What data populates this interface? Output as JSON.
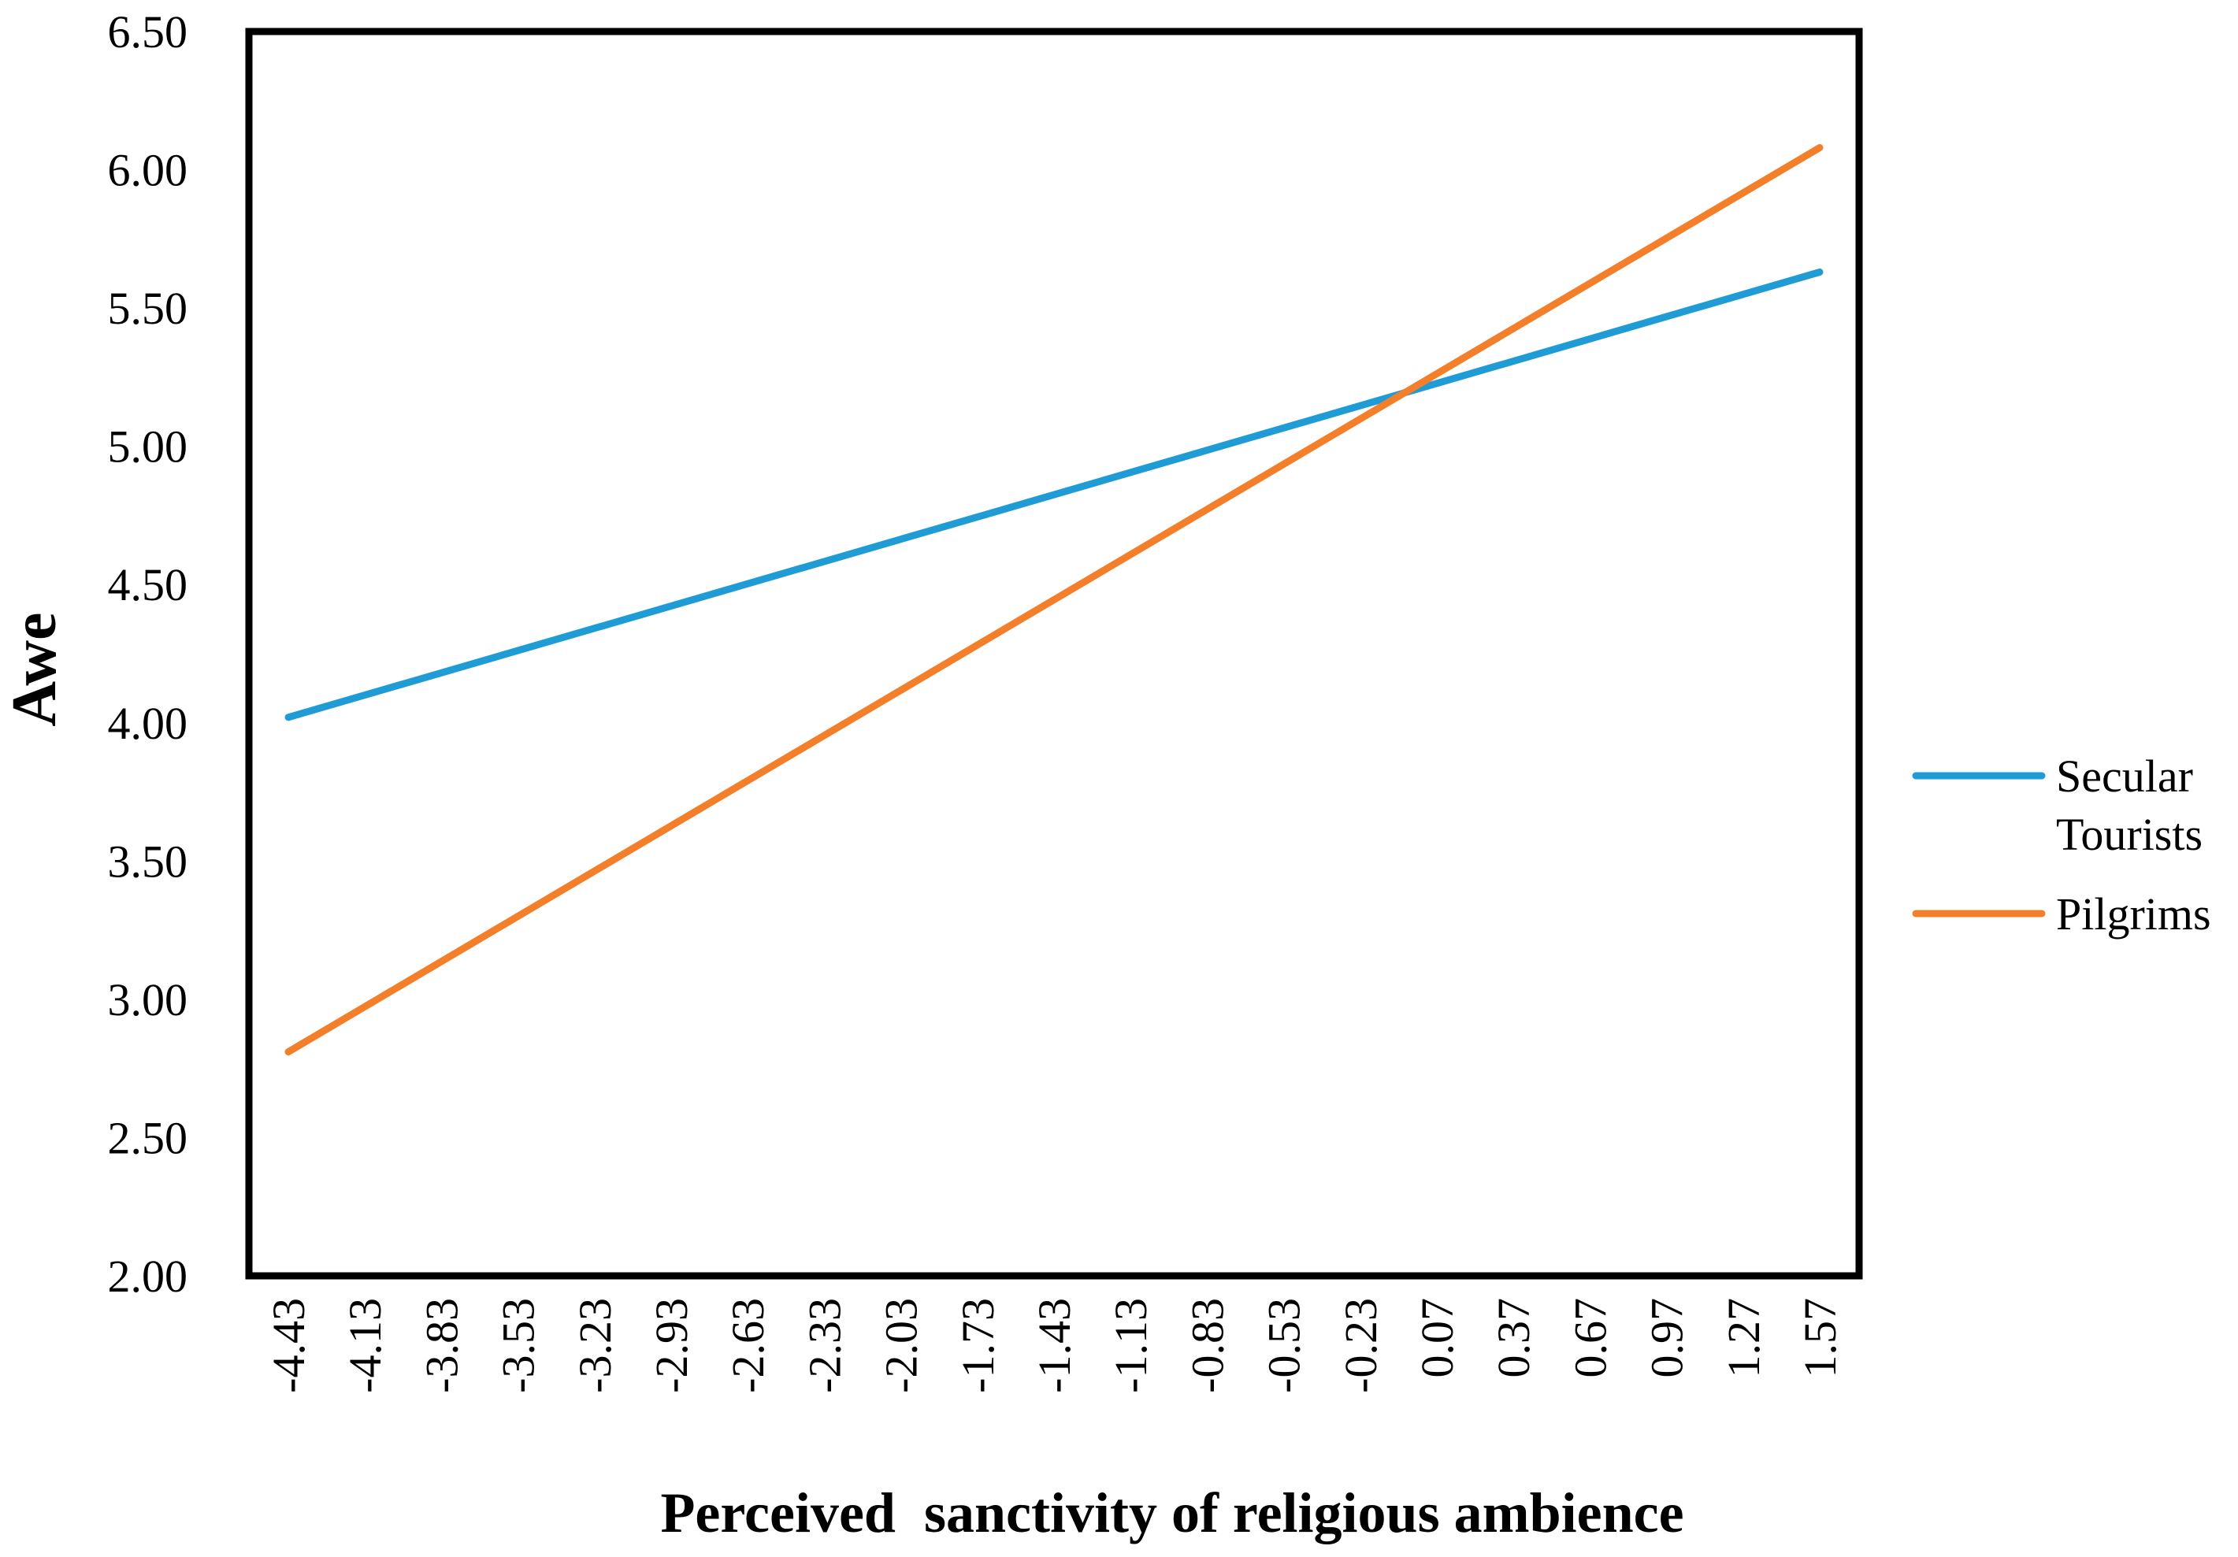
{
  "chart_data": {
    "type": "line",
    "title": "",
    "xlabel": "Perceived  sanctivity of religious ambience",
    "ylabel": "Awe",
    "categories": [
      "-4.43",
      "-4.13",
      "-3.83",
      "-3.53",
      "-3.23",
      "-2.93",
      "-2.63",
      "-2.33",
      "-2.03",
      "-1.73",
      "-1.43",
      "-1.13",
      "-0.83",
      "-0.53",
      "-0.23",
      "0.07",
      "0.37",
      "0.67",
      "0.97",
      "1.27",
      "1.57"
    ],
    "x_range": [
      -4.43,
      1.57
    ],
    "ylim": [
      2.0,
      6.5
    ],
    "yticks": [
      "2.00",
      "2.50",
      "3.00",
      "3.50",
      "4.00",
      "4.50",
      "5.00",
      "5.50",
      "6.00",
      "6.50"
    ],
    "grid": false,
    "legend_position": "right",
    "series": [
      {
        "name_lines": [
          "Secular",
          "Tourists"
        ],
        "x": [
          -4.43,
          1.57
        ],
        "y": [
          4.02,
          5.63
        ],
        "color": "#1f9bd6"
      },
      {
        "name_lines": [
          "Pilgrims"
        ],
        "x": [
          -4.43,
          1.57
        ],
        "y": [
          2.81,
          6.08
        ],
        "color": "#f47f2a"
      }
    ]
  }
}
